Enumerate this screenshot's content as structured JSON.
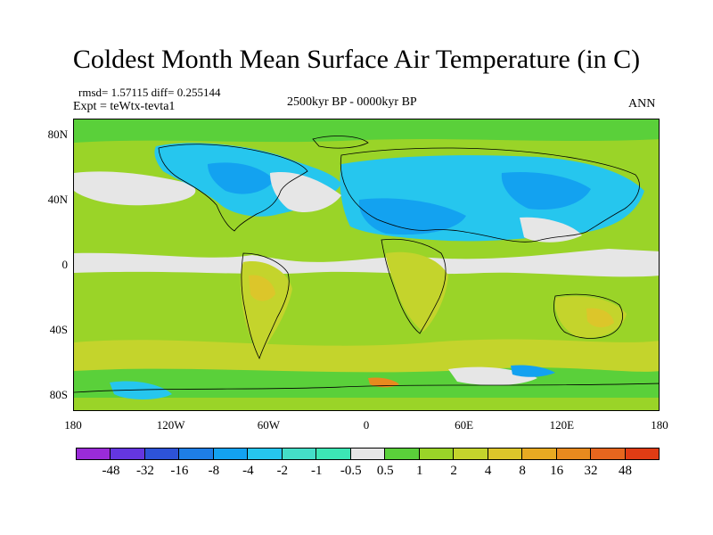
{
  "title": "Coldest Month Mean Surface Air Temperature (in C)",
  "stats": {
    "line": "rmsd= 1.57115  diff= 0.255144"
  },
  "experiment": "Expt = teWtx-tevta1",
  "period": "2500kyr BP - 0000kyr BP",
  "season": "ANN",
  "map": {
    "lon_range": [
      -180,
      180
    ],
    "lat_range": [
      -90,
      90
    ],
    "lat_ticks": [
      {
        "value": 80,
        "label": "80N"
      },
      {
        "value": 40,
        "label": "40N"
      },
      {
        "value": 0,
        "label": "0"
      },
      {
        "value": -40,
        "label": "40S"
      },
      {
        "value": -80,
        "label": "80S"
      }
    ],
    "lon_ticks": [
      {
        "value": -180,
        "label": "180"
      },
      {
        "value": -120,
        "label": "120W"
      },
      {
        "value": -60,
        "label": "60W"
      },
      {
        "value": 0,
        "label": "0"
      },
      {
        "value": 60,
        "label": "60E"
      },
      {
        "value": 120,
        "label": "120E"
      },
      {
        "value": 180,
        "label": "180"
      }
    ]
  },
  "colorbar": {
    "colors": [
      "#9a2bd8",
      "#6436e0",
      "#2d53d8",
      "#1e7ee6",
      "#13a2f0",
      "#26c6ee",
      "#44dec8",
      "#3ce6b4",
      "#e6e6e6",
      "#5ad03a",
      "#9ad428",
      "#c4d42c",
      "#dcc62a",
      "#e8aa22",
      "#e88a1e",
      "#e6661e",
      "#e03c14"
    ],
    "labels": [
      "-48",
      "-32",
      "-16",
      "-8",
      "-4",
      "-2",
      "-1",
      "-0.5",
      "0.5",
      "1",
      "2",
      "4",
      "8",
      "16",
      "32",
      "48"
    ]
  },
  "palette": {
    "neutral": "#e6e6e6",
    "cool": "#26c6ee",
    "cooler": "#13a2f0",
    "warm": "#9ad428",
    "warmer": "#c4d42c",
    "hot": "#dcc62a",
    "light_warm": "#5ad03a"
  }
}
